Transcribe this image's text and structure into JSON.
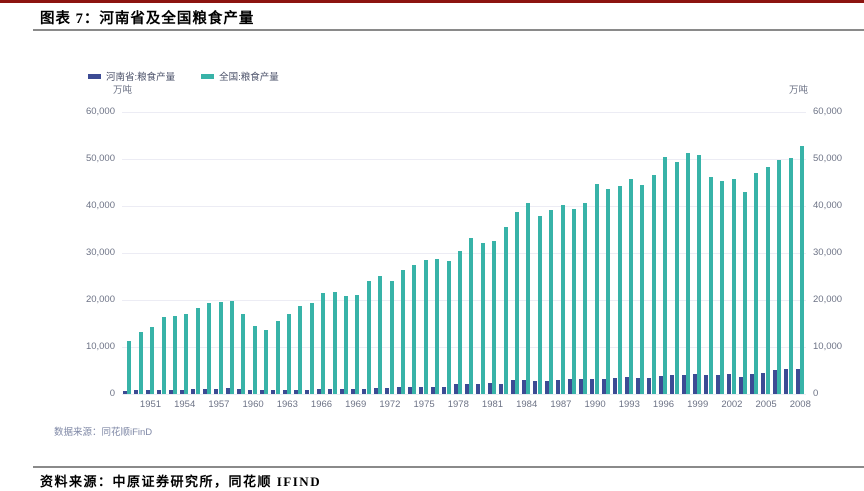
{
  "header": {
    "title": "图表 7：河南省及全国粮食产量",
    "accent_rule_color": "#8c1410"
  },
  "chart_footer": {
    "source": "数据来源：同花顺iFinD"
  },
  "footer": {
    "text": "资料来源：中原证券研究所，同花顺 IFIND"
  },
  "chart_data": {
    "type": "bar",
    "title": "河南省及全国粮食产量",
    "unit_left": "万吨",
    "unit_right": "万吨",
    "grid": "horizontal",
    "legend_position": "top-left",
    "ylim": [
      0,
      60000
    ],
    "y_ticks": [
      0,
      10000,
      20000,
      30000,
      40000,
      50000,
      60000
    ],
    "x_tick_years": [
      1951,
      1954,
      1957,
      1960,
      1963,
      1966,
      1969,
      1972,
      1975,
      1978,
      1981,
      1984,
      1987,
      1990,
      1993,
      1996,
      1999,
      2002,
      2005,
      2008
    ],
    "years": [
      1949,
      1950,
      1951,
      1952,
      1953,
      1954,
      1955,
      1956,
      1957,
      1958,
      1959,
      1960,
      1961,
      1962,
      1963,
      1964,
      1965,
      1966,
      1967,
      1968,
      1969,
      1970,
      1971,
      1972,
      1973,
      1974,
      1975,
      1976,
      1977,
      1978,
      1979,
      1980,
      1981,
      1982,
      1983,
      1984,
      1985,
      1986,
      1987,
      1988,
      1989,
      1990,
      1991,
      1992,
      1993,
      1994,
      1995,
      1996,
      1997,
      1998,
      1999,
      2000,
      2001,
      2002,
      2003,
      2004,
      2005,
      2006,
      2007,
      2008
    ],
    "series": [
      {
        "name": "河南省:粮食产量",
        "color": "#3c4b94",
        "values": [
          713,
          802,
          870,
          881,
          853,
          888,
          971,
          1035,
          1108,
          1265,
          975,
          889,
          875,
          825,
          859,
          905,
          940,
          1065,
          1065,
          1060,
          1034,
          1148,
          1229,
          1215,
          1414,
          1478,
          1572,
          1578,
          1567,
          2097,
          2134,
          2150,
          2313,
          2217,
          2904,
          2940,
          2711,
          2849,
          3033,
          3204,
          3270,
          3304,
          3256,
          3377,
          3639,
          3390,
          3467,
          3839,
          4093,
          4010,
          4253,
          4102,
          4120,
          4210,
          3569,
          4260,
          4582,
          5050,
          5245,
          5365
        ]
      },
      {
        "name": "全国:粮食产量",
        "color": "#38b3a8",
        "values": [
          11318,
          13213,
          14369,
          16392,
          16683,
          16952,
          18394,
          19275,
          19505,
          19765,
          16968,
          14385,
          13650,
          15441,
          17000,
          18750,
          19453,
          21400,
          21782,
          20906,
          21097,
          23996,
          25014,
          24048,
          26494,
          27527,
          28452,
          28631,
          28273,
          30477,
          33212,
          32056,
          32502,
          35450,
          38728,
          40731,
          37911,
          39151,
          40298,
          39408,
          40755,
          44624,
          43529,
          44266,
          45649,
          44510,
          46662,
          50454,
          49417,
          51230,
          50839,
          46218,
          45264,
          45706,
          43070,
          46947,
          48402,
          49804,
          50160,
          52871
        ]
      }
    ]
  }
}
